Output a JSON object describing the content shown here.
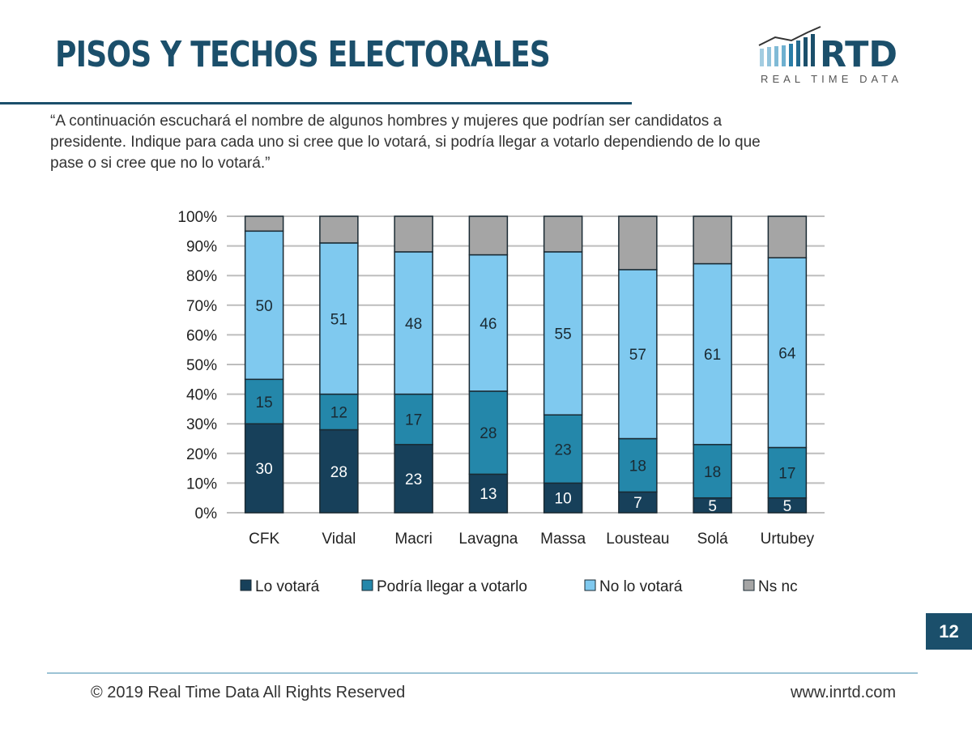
{
  "header": {
    "title": "PISOS Y TECHOS ELECTORALES",
    "logo_text": "RTD",
    "logo_subtext": "REAL TIME DATA"
  },
  "question": "“A continuación escuchará el nombre de algunos hombres y mujeres que podrían ser candidatos a presidente. Indique para cada uno si cree que lo votará, si podría llegar a votarlo dependiendo de lo que pase o si cree que no lo votará.”",
  "chart_data": {
    "type": "bar",
    "stacked": true,
    "percent": true,
    "categories": [
      "CFK",
      "Vidal",
      "Macri",
      "Lavagna",
      "Massa",
      "Lousteau",
      "Solá",
      "Urtubey"
    ],
    "series": [
      {
        "name": "Lo votará",
        "color": "#17405a",
        "values": [
          30,
          28,
          23,
          13,
          10,
          7,
          5,
          5
        ]
      },
      {
        "name": "Podría llegar a votarlo",
        "color": "#2487aa",
        "values": [
          15,
          12,
          17,
          28,
          23,
          18,
          18,
          17
        ]
      },
      {
        "name": "No lo votará",
        "color": "#7fc9ef",
        "values": [
          50,
          51,
          48,
          46,
          55,
          57,
          61,
          64
        ]
      },
      {
        "name": "Ns nc",
        "color": "#a5a5a5",
        "values": [
          5,
          9,
          12,
          13,
          12,
          18,
          16,
          14
        ]
      }
    ],
    "labeled_series": [
      0,
      1,
      2
    ],
    "yticks": [
      "0%",
      "10%",
      "20%",
      "30%",
      "40%",
      "50%",
      "60%",
      "70%",
      "80%",
      "90%",
      "100%"
    ],
    "ylim": [
      0,
      100
    ],
    "grid": true,
    "legend": "bottom"
  },
  "footer": {
    "page": "12",
    "copyright": "© 2019 Real Time Data All Rights Reserved",
    "url": "www.inrtd.com"
  }
}
